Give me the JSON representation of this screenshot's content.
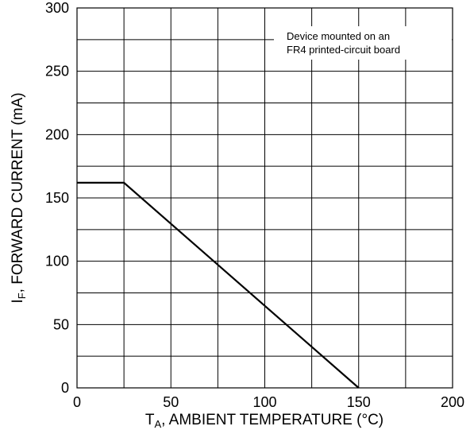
{
  "chart_data": {
    "type": "line",
    "title": "",
    "xlabel": {
      "main": "T",
      "sub": "A",
      "rest": ", AMBIENT TEMPERATURE (°C)"
    },
    "ylabel": {
      "main": "I",
      "sub": "F",
      "rest": ", FORWARD CURRENT (mA)"
    },
    "xlim": [
      0,
      200
    ],
    "ylim": [
      0,
      300
    ],
    "x_ticks": [
      0,
      50,
      100,
      150,
      200
    ],
    "y_ticks": [
      0,
      50,
      100,
      150,
      200,
      250,
      300
    ],
    "x_grid_step": 25,
    "y_grid_step": 25,
    "grid": true,
    "series": [
      {
        "x": [
          0,
          25,
          150
        ],
        "y": [
          162,
          162,
          0
        ]
      }
    ],
    "annotations": [
      {
        "lines": [
          "Device mounted on an",
          "FR4 printed-circuit board"
        ],
        "position": "top-right"
      }
    ]
  }
}
